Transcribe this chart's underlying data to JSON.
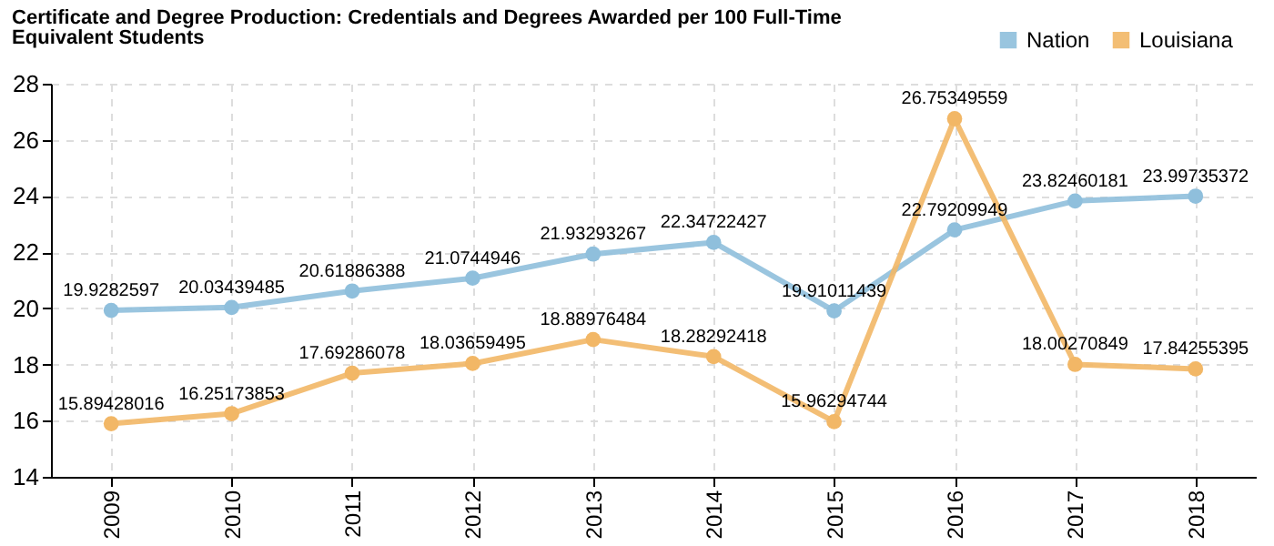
{
  "chart_data": {
    "type": "line",
    "title": "Certificate and Degree Production: Credentials and Degrees Awarded per 100 Full-Time Equivalent Students",
    "categories": [
      "2009",
      "2010",
      "2011",
      "2012",
      "2013",
      "2014",
      "2015",
      "2016",
      "2017",
      "2018"
    ],
    "series": [
      {
        "name": "Nation",
        "color": "#8fbfdc",
        "values": [
          19.9282597,
          20.03439485,
          20.61886388,
          21.0744946,
          21.93293267,
          22.34722427,
          19.91011439,
          22.79209949,
          23.82460181,
          23.99735372
        ]
      },
      {
        "name": "Louisiana",
        "color": "#f2b766",
        "values": [
          15.89428016,
          16.25173853,
          17.69286078,
          18.03659495,
          18.88976484,
          18.28292418,
          15.96294744,
          26.75349559,
          18.00270849,
          17.84255395
        ]
      }
    ],
    "ylim": [
      14,
      28
    ],
    "yticks": [
      14,
      16,
      18,
      20,
      22,
      24,
      26,
      28
    ],
    "grid": true,
    "legend": "top right",
    "marker": "circle",
    "line_style": "solid",
    "data_labels": true
  }
}
